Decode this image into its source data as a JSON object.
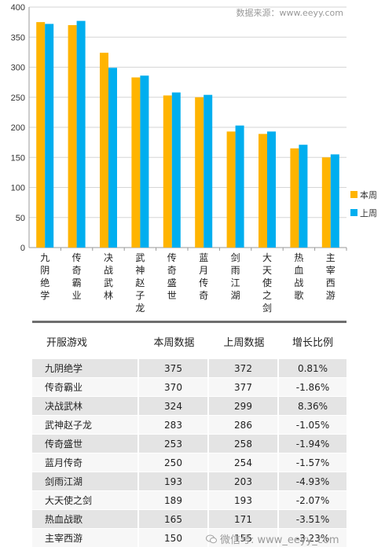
{
  "source_label": "数据来源：www.eeyy.com",
  "legend": [
    {
      "name": "本周",
      "color": "#FFB400"
    },
    {
      "name": "上周",
      "color": "#00AEEF"
    }
  ],
  "chart_data": {
    "type": "bar",
    "categories": [
      "九阴绝学",
      "传奇霸业",
      "决战武林",
      "武神赵子龙",
      "传奇盛世",
      "蓝月传奇",
      "剑雨江湖",
      "大天使之剑",
      "热血战歌",
      "主宰西游"
    ],
    "series": [
      {
        "name": "本周",
        "values": [
          375,
          370,
          324,
          283,
          253,
          250,
          193,
          189,
          165,
          150
        ]
      },
      {
        "name": "上周",
        "values": [
          372,
          377,
          299,
          286,
          258,
          254,
          203,
          193,
          171,
          155
        ]
      }
    ],
    "yticks": [
      "0",
      "50",
      "100",
      "150",
      "200",
      "250",
      "300",
      "350",
      "400"
    ],
    "ylim": [
      0,
      400
    ],
    "grid": true,
    "legend_position": "right",
    "colors": [
      "#FFB400",
      "#00AEEF"
    ]
  },
  "table": {
    "headers": [
      "开服游戏",
      "本周数据",
      "上周数据",
      "增长比例"
    ],
    "rows": [
      [
        "九阴绝学",
        "375",
        "372",
        "0.81%"
      ],
      [
        "传奇霸业",
        "370",
        "377",
        "-1.86%"
      ],
      [
        "决战武林",
        "324",
        "299",
        "8.36%"
      ],
      [
        "武神赵子龙",
        "283",
        "286",
        "-1.05%"
      ],
      [
        "传奇盛世",
        "253",
        "258",
        "-1.94%"
      ],
      [
        "蓝月传奇",
        "250",
        "254",
        "-1.57%"
      ],
      [
        "剑雨江湖",
        "193",
        "203",
        "-4.93%"
      ],
      [
        "大天使之剑",
        "189",
        "193",
        "-2.07%"
      ],
      [
        "热血战歌",
        "165",
        "171",
        "-3.51%"
      ],
      [
        "主宰西游",
        "150",
        "155",
        "-3.23%"
      ]
    ]
  },
  "watermark": "微信号: www_eeyy_com"
}
